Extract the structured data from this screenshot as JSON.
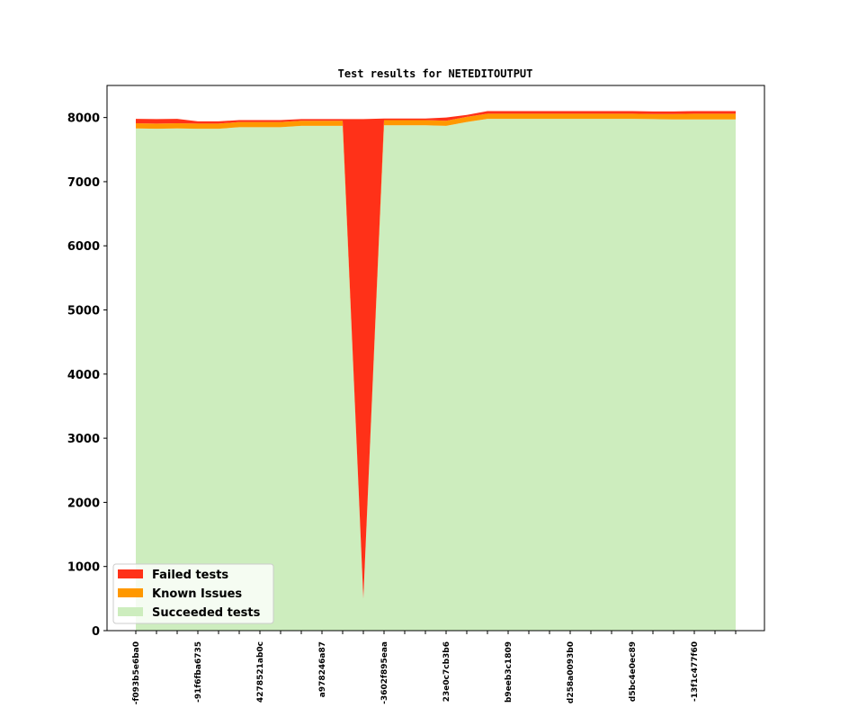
{
  "colors": {
    "failed": "#ff3118",
    "known": "#ff9800",
    "succeeded": "#cdedbe",
    "axes": "#000000",
    "legend_bg": "#ffffff"
  },
  "chart_data": {
    "type": "area",
    "stacked": true,
    "title": "Test results for NETEDITOUTPUT",
    "xlabel": "",
    "ylabel": "",
    "ylim": [
      0,
      8500
    ],
    "yticks": [
      0,
      1000,
      2000,
      3000,
      4000,
      5000,
      6000,
      7000,
      8000
    ],
    "legend_position": "lower-left",
    "grid": false,
    "categories": [
      "-f093b5e6ba0",
      "",
      "",
      "-91f6fba6735",
      "",
      "",
      "4278521ab0c",
      "",
      "",
      "a978246a87",
      "",
      "",
      "-3602f895eaa",
      "",
      "",
      "23e0c7cb3b6",
      "",
      "",
      "b9eeb3c1809",
      "",
      "",
      "d258a0093b0",
      "",
      "",
      "d5bc4e0ec89",
      "",
      "",
      "-13f1c477f60",
      "",
      ""
    ],
    "series": [
      {
        "name": "Succeeded tests",
        "color_key": "succeeded",
        "values": [
          7830,
          7825,
          7830,
          7825,
          7825,
          7850,
          7850,
          7850,
          7870,
          7870,
          7870,
          500,
          7880,
          7880,
          7880,
          7870,
          7930,
          7980,
          7980,
          7980,
          7980,
          7980,
          7980,
          7980,
          7980,
          7975,
          7970,
          7970,
          7970,
          7970
        ]
      },
      {
        "name": "Known Issues",
        "color_key": "known",
        "values": [
          80,
          80,
          80,
          80,
          80,
          80,
          80,
          80,
          80,
          80,
          80,
          0,
          80,
          80,
          80,
          80,
          80,
          80,
          80,
          80,
          80,
          80,
          80,
          80,
          80,
          80,
          85,
          90,
          90,
          90
        ]
      },
      {
        "name": "Failed tests",
        "color_key": "failed",
        "values": [
          70,
          70,
          70,
          35,
          35,
          30,
          30,
          30,
          25,
          25,
          25,
          7475,
          25,
          25,
          25,
          50,
          30,
          40,
          40,
          40,
          40,
          40,
          40,
          40,
          40,
          40,
          40,
          40,
          40,
          40
        ]
      }
    ],
    "legend_order": [
      "Failed tests",
      "Known Issues",
      "Succeeded tests"
    ]
  }
}
